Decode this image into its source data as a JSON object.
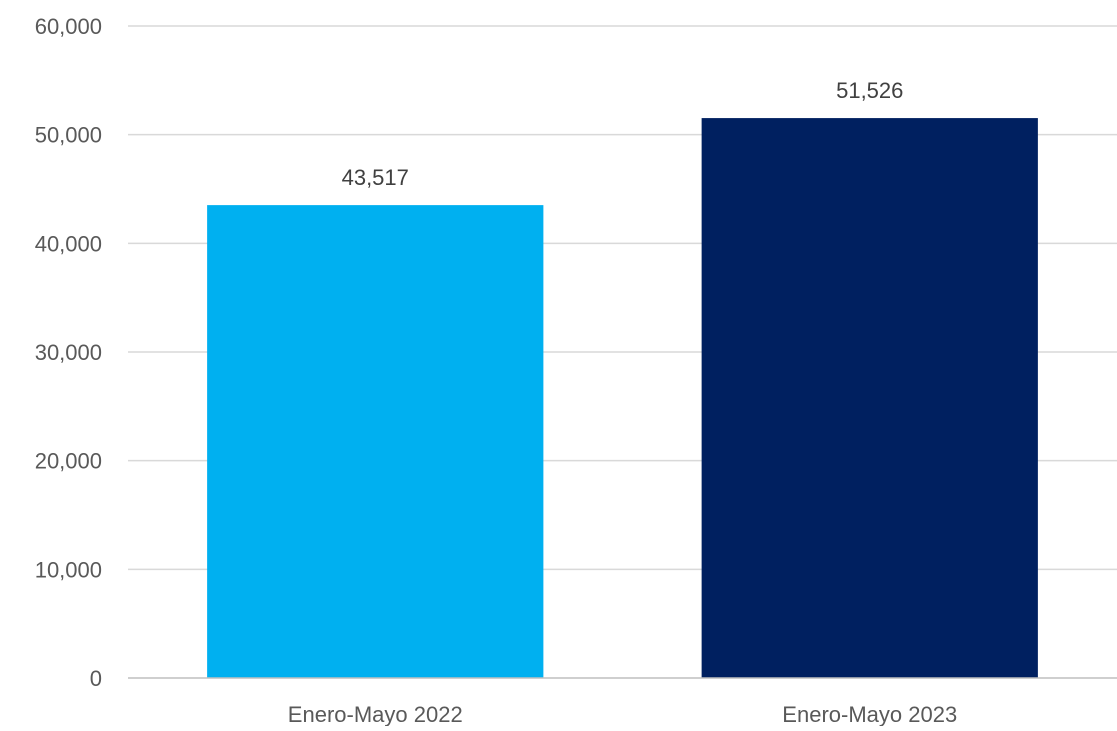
{
  "chart_data": {
    "type": "bar",
    "title": "",
    "xlabel": "",
    "ylabel": "",
    "categories": [
      "Enero-Mayo 2022",
      "Enero-Mayo 2023"
    ],
    "values": [
      43517,
      51526
    ],
    "data_labels": [
      "43,517",
      "51,526"
    ],
    "colors": [
      "#00B0F0",
      "#002060"
    ],
    "ylim": [
      0,
      60000
    ],
    "yticks": [
      0,
      10000,
      20000,
      30000,
      40000,
      50000,
      60000
    ],
    "ytick_labels": [
      "0",
      "10,000",
      "20,000",
      "30,000",
      "40,000",
      "50,000",
      "60,000"
    ],
    "grid": true,
    "legend": "none"
  }
}
